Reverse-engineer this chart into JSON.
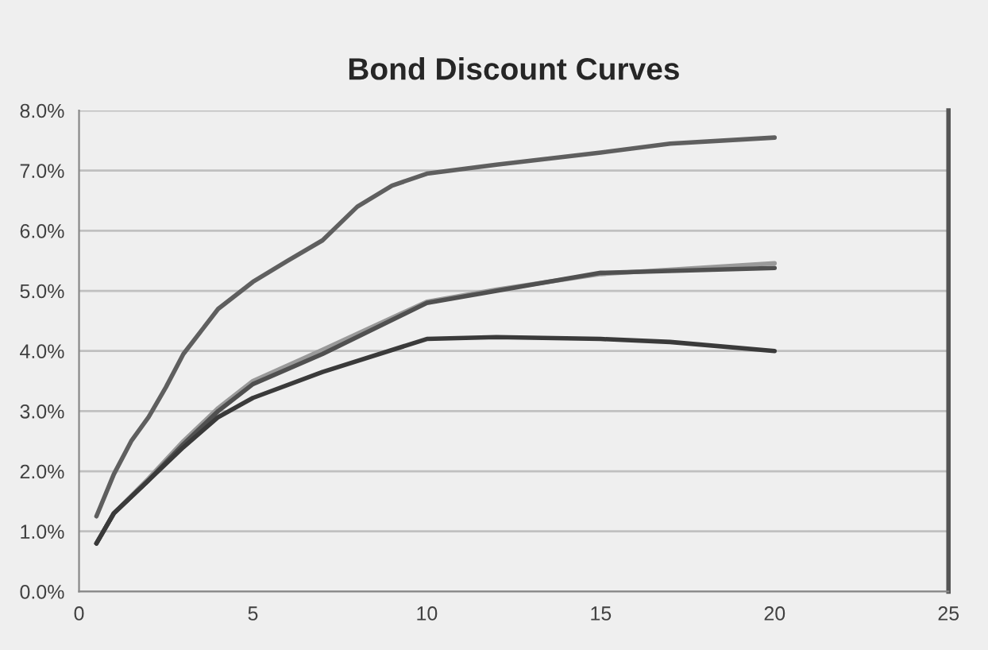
{
  "chart_data": {
    "type": "line",
    "title": "Bond Discount Curves",
    "series": [
      {
        "color": "#5f5f5f",
        "x": [
          0.5,
          1,
          1.5,
          2,
          2.5,
          3,
          4,
          5,
          6,
          7,
          8,
          9,
          10,
          12,
          15,
          17,
          20
        ],
        "values": [
          1.25,
          1.95,
          2.5,
          2.9,
          3.4,
          3.95,
          4.7,
          5.15,
          5.5,
          5.84,
          6.4,
          6.75,
          6.95,
          7.1,
          7.3,
          7.45,
          7.55
        ]
      },
      {
        "color": "#9a9a9a",
        "x": [
          0.5,
          1,
          2,
          3,
          4,
          5,
          7,
          10,
          12,
          15,
          20
        ],
        "values": [
          0.8,
          1.3,
          1.88,
          2.5,
          3.05,
          3.5,
          4.02,
          4.82,
          5.02,
          5.28,
          5.46
        ]
      },
      {
        "color": "#505050",
        "x": [
          0.5,
          1,
          2,
          3,
          4,
          5,
          7,
          10,
          12,
          15,
          20
        ],
        "values": [
          0.8,
          1.3,
          1.85,
          2.45,
          3.0,
          3.45,
          3.95,
          4.8,
          5.0,
          5.3,
          5.38
        ]
      },
      {
        "color": "#3a3a3a",
        "x": [
          0.5,
          1,
          2,
          3,
          4,
          5,
          7,
          10,
          12,
          15,
          17,
          20
        ],
        "values": [
          0.8,
          1.3,
          1.85,
          2.4,
          2.9,
          3.22,
          3.65,
          4.2,
          4.23,
          4.2,
          4.15,
          4.0
        ]
      }
    ],
    "xlim": [
      0,
      25
    ],
    "xticks": [
      0,
      5,
      10,
      15,
      20,
      25
    ],
    "ylim": [
      0,
      8
    ],
    "yticks": [
      {
        "value": 0,
        "label": "0.0%"
      },
      {
        "value": 1,
        "label": "1.0%"
      },
      {
        "value": 2,
        "label": "2.0%"
      },
      {
        "value": 3,
        "label": "3.0%"
      },
      {
        "value": 4,
        "label": "4.0%"
      },
      {
        "value": 5,
        "label": "5.0%"
      },
      {
        "value": 6,
        "label": "6.0%"
      },
      {
        "value": 7,
        "label": "7.0%"
      },
      {
        "value": 8,
        "label": "8.0%"
      }
    ],
    "grid": "y",
    "legend": false,
    "marker": "none",
    "line_style": "solid"
  }
}
